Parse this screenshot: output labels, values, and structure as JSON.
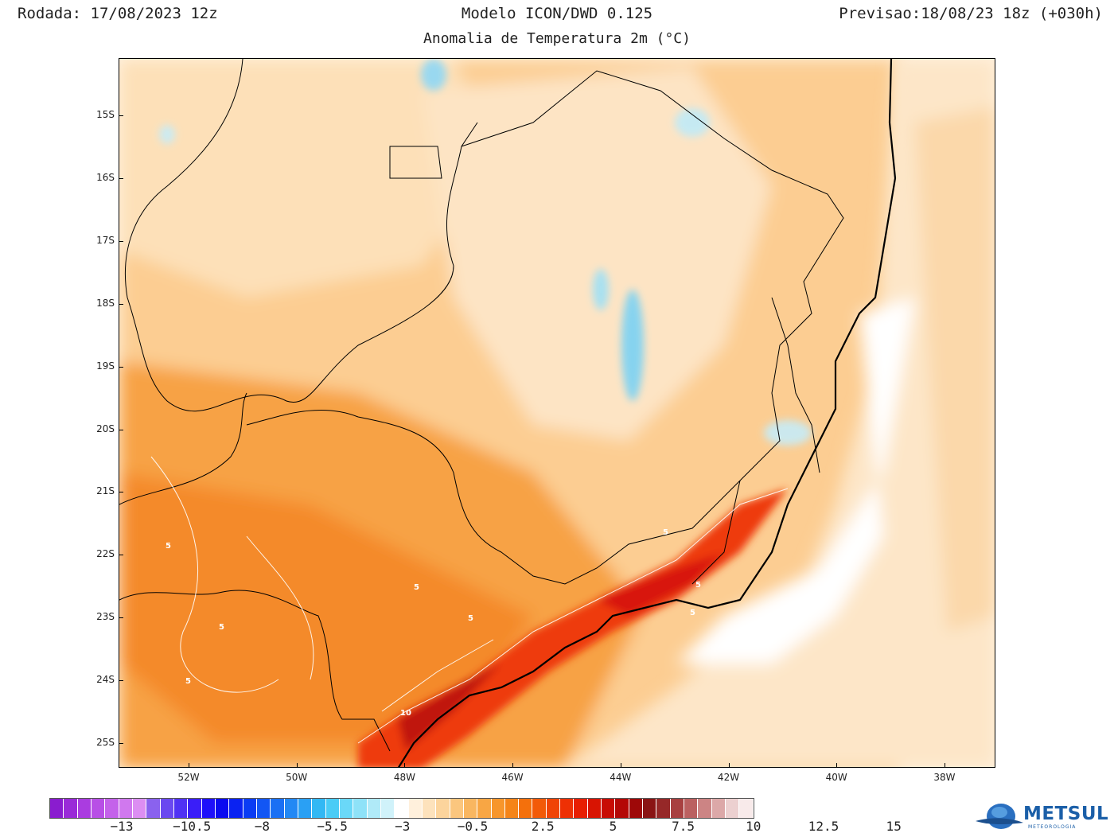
{
  "header": {
    "run": "Rodada: 17/08/2023 12z",
    "model": "Modelo ICON/DWD 0.125",
    "forecast": "Previsao:18/08/23 18z (+030h)",
    "subtitle": "Anomalia de Temperatura 2m (°C)"
  },
  "map": {
    "lat_labels": [
      "15S",
      "16S",
      "17S",
      "18S",
      "19S",
      "20S",
      "21S",
      "22S",
      "23S",
      "24S",
      "25S"
    ],
    "lon_labels": [
      "52W",
      "50W",
      "48W",
      "46W",
      "44W",
      "42W",
      "40W",
      "38W"
    ],
    "contour_labels": [
      "5",
      "5",
      "5",
      "5",
      "5",
      "5",
      "5",
      "5",
      "10"
    ]
  },
  "colorbar": {
    "labels": [
      "−13",
      "−10.5",
      "−8",
      "−5.5",
      "−3",
      "−0.5",
      "2.5",
      "5",
      "7.5",
      "10",
      "12.5",
      "15"
    ],
    "colors": [
      "#8a1ccf",
      "#9a2ad8",
      "#aa3ce0",
      "#b84fe6",
      "#c462ea",
      "#d078ee",
      "#dc8ef2",
      "#8a62ee",
      "#6a48f0",
      "#5032f4",
      "#3a1ef8",
      "#1e10fa",
      "#0a0af0",
      "#0a22f2",
      "#0a3cf4",
      "#1256f4",
      "#1a70f4",
      "#2288f4",
      "#2aa0f4",
      "#32b8f4",
      "#4accf6",
      "#6ad8f8",
      "#8ee2f8",
      "#b0eaf8",
      "#d0f2fa",
      "#ffffff",
      "#fff0dc",
      "#fde2bc",
      "#fcd49c",
      "#fbc67e",
      "#f9b660",
      "#f8a644",
      "#f7962c",
      "#f58418",
      "#f4700c",
      "#f25a08",
      "#f04406",
      "#ee3004",
      "#e81e02",
      "#d81402",
      "#c80c04",
      "#b40806",
      "#9e0808",
      "#8a1414",
      "#962828",
      "#a84040",
      "#bb6060",
      "#cc8484",
      "#dca8a8",
      "#ecd0d0",
      "#f8eaea"
    ]
  },
  "logo": {
    "name": "METSUL",
    "sub": "METEOROLOGIA"
  }
}
